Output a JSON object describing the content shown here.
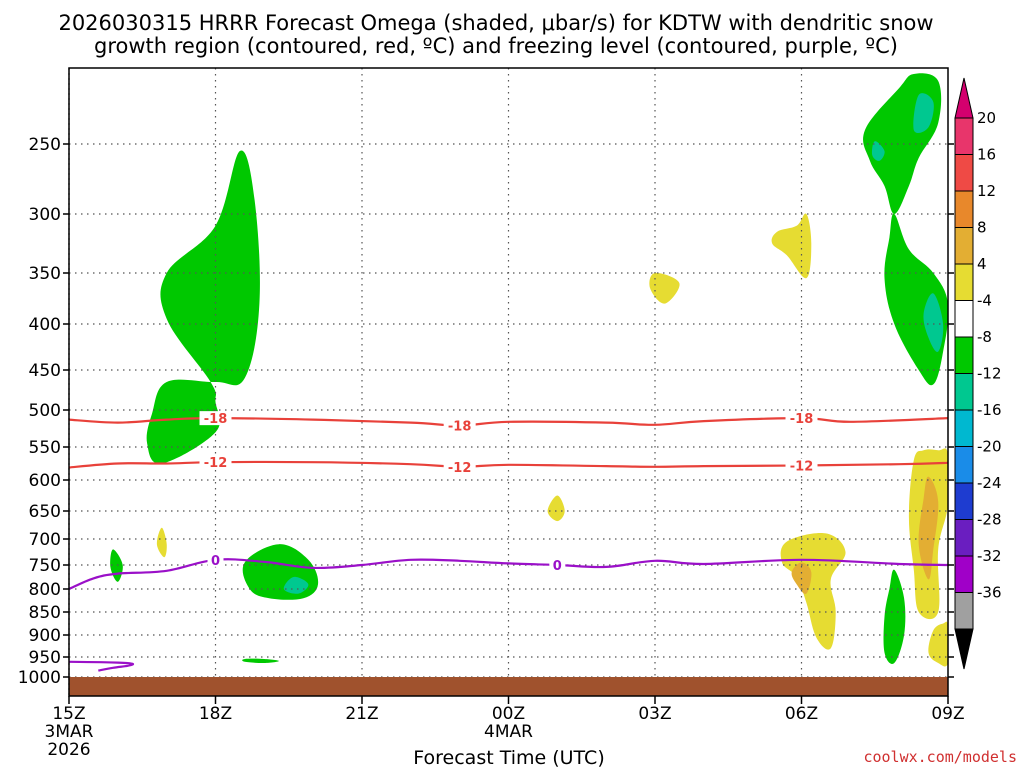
{
  "chart_data": {
    "type": "time-height cross section",
    "title_line1": "2026030315 HRRR Forecast Omega (shaded, μbar/s) for KDTW with dendritic snow",
    "title_line2": "growth region (contoured, red, ºC) and freezing level (contoured, purple, ºC)",
    "xlabel": "Forecast Time (UTC)",
    "credit": "coolwx.com/models",
    "x_range_hours": [
      0,
      18
    ],
    "x_ticks": [
      {
        "hour": 0,
        "label": "15Z",
        "sub1": "3MAR",
        "sub2": "2026"
      },
      {
        "hour": 3,
        "label": "18Z"
      },
      {
        "hour": 6,
        "label": "21Z"
      },
      {
        "hour": 9,
        "label": "00Z",
        "sub1": "4MAR"
      },
      {
        "hour": 12,
        "label": "03Z"
      },
      {
        "hour": 15,
        "label": "06Z"
      },
      {
        "hour": 18,
        "label": "09Z"
      }
    ],
    "y_ticks_hPa": [
      250,
      300,
      350,
      400,
      450,
      500,
      550,
      600,
      650,
      700,
      750,
      800,
      850,
      900,
      950,
      1000
    ],
    "colorbar": {
      "ticks": [
        "20",
        "16",
        "12",
        "8",
        "4",
        "-4",
        "-8",
        "-12",
        "-16",
        "-20",
        "-24",
        "-28",
        "-32",
        "-36"
      ],
      "colors": [
        "#e8356b",
        "#ef4a45",
        "#e8882b",
        "#e3ae33",
        "#e6dc32",
        "#ffffff",
        "#00c800",
        "#00c890",
        "#00b8d0",
        "#1a8ce8",
        "#1e3cd0",
        "#6a1ec0",
        "#a000c8",
        "#a0a0a0"
      ],
      "top_color": "#d4006e",
      "bottom_color": "#000000"
    },
    "contours": [
      {
        "name": "dgz-minus18",
        "value": -18,
        "color": "#e8413a",
        "label": "-18",
        "points": [
          [
            0,
            513
          ],
          [
            1,
            517
          ],
          [
            2,
            513
          ],
          [
            3,
            511
          ],
          [
            5,
            513
          ],
          [
            7,
            517
          ],
          [
            8,
            521
          ],
          [
            9,
            516
          ],
          [
            11,
            517
          ],
          [
            12,
            520
          ],
          [
            13,
            515
          ],
          [
            15,
            511
          ],
          [
            16,
            516
          ],
          [
            18,
            511
          ]
        ]
      },
      {
        "name": "dgz-minus12",
        "value": -12,
        "color": "#e8413a",
        "label": "-12",
        "points": [
          [
            0,
            581
          ],
          [
            1,
            575
          ],
          [
            2,
            575
          ],
          [
            3,
            573
          ],
          [
            5,
            573
          ],
          [
            7,
            576
          ],
          [
            8,
            580
          ],
          [
            9,
            577
          ],
          [
            11,
            579
          ],
          [
            12,
            580
          ],
          [
            13,
            579
          ],
          [
            15,
            578
          ],
          [
            17,
            576
          ],
          [
            18,
            574
          ]
        ]
      },
      {
        "name": "freezing-level",
        "value": 0,
        "color": "#9a10c8",
        "label": "0",
        "points": [
          [
            0,
            800
          ],
          [
            0.5,
            778
          ],
          [
            1,
            768
          ],
          [
            2,
            762
          ],
          [
            3,
            740
          ],
          [
            4,
            744
          ],
          [
            5,
            756
          ],
          [
            6,
            750
          ],
          [
            7,
            740
          ],
          [
            8,
            742
          ],
          [
            9,
            747
          ],
          [
            10,
            750
          ],
          [
            11,
            754
          ],
          [
            12,
            742
          ],
          [
            13,
            748
          ],
          [
            15,
            740
          ],
          [
            17,
            748
          ],
          [
            18,
            750
          ]
        ]
      },
      {
        "name": "freezing-level-surface",
        "value": 0,
        "color": "#9a10c8",
        "label": "",
        "points": [
          [
            0,
            962
          ],
          [
            1,
            964
          ],
          [
            1.3,
            967
          ],
          [
            1.2,
            972
          ],
          [
            0.9,
            977
          ],
          [
            0.6,
            984
          ]
        ]
      }
    ],
    "shaded_regions": [
      {
        "name": "omega-upward-minus4-a",
        "value": -4,
        "color": "#00c800",
        "points": [
          [
            3.0,
            465
          ],
          [
            2.0,
            465
          ],
          [
            1.7,
            505
          ],
          [
            1.6,
            545
          ],
          [
            1.9,
            575
          ],
          [
            3.0,
            530
          ],
          [
            3.0,
            490
          ],
          [
            2.9,
            465
          ],
          [
            2.0,
            395
          ],
          [
            2.0,
            350
          ],
          [
            3.0,
            310
          ],
          [
            3.5,
            255
          ],
          [
            3.8,
            290
          ],
          [
            3.9,
            380
          ],
          [
            3.6,
            460
          ]
        ]
      },
      {
        "name": "omega-upward-minus4-b",
        "value": -4,
        "color": "#00c800",
        "points": [
          [
            3.6,
            745
          ],
          [
            4.3,
            710
          ],
          [
            4.9,
            740
          ],
          [
            5.1,
            790
          ],
          [
            4.8,
            820
          ],
          [
            4.1,
            820
          ],
          [
            3.7,
            800
          ]
        ]
      },
      {
        "name": "omega-upward-minus8-b",
        "value": -8,
        "color": "#00c890",
        "points": [
          [
            4.6,
            775
          ],
          [
            4.9,
            790
          ],
          [
            4.7,
            810
          ],
          [
            4.4,
            800
          ]
        ]
      },
      {
        "name": "omega-upward-minus4-c",
        "value": -4,
        "color": "#00c800",
        "points": [
          [
            0.9,
            720
          ],
          [
            1.1,
            750
          ],
          [
            1.0,
            785
          ],
          [
            0.85,
            755
          ]
        ]
      },
      {
        "name": "omega-upward-minus4-d",
        "value": -4,
        "color": "#00c800",
        "points": [
          [
            3.6,
            955
          ],
          [
            4.0,
            955
          ],
          [
            4.3,
            960
          ],
          [
            4.0,
            965
          ],
          [
            3.6,
            962
          ]
        ]
      },
      {
        "name": "omega-upward-minus4-e",
        "value": -4,
        "color": "#00c800",
        "points": [
          [
            16.3,
            240
          ],
          [
            17.0,
            210
          ],
          [
            17.3,
            200
          ],
          [
            17.8,
            205
          ],
          [
            17.8,
            235
          ],
          [
            17.4,
            260
          ],
          [
            17.2,
            280
          ],
          [
            16.9,
            300
          ],
          [
            16.7,
            280
          ],
          [
            16.4,
            262
          ]
        ]
      },
      {
        "name": "omega-upward-minus8-e",
        "value": -8,
        "color": "#00c890",
        "points": [
          [
            17.4,
            215
          ],
          [
            17.7,
            220
          ],
          [
            17.6,
            238
          ],
          [
            17.3,
            240
          ]
        ]
      },
      {
        "name": "omega-upward-minus8-e2",
        "value": -8,
        "color": "#00c890",
        "points": [
          [
            16.5,
            248
          ],
          [
            16.7,
            255
          ],
          [
            16.6,
            262
          ],
          [
            16.45,
            258
          ]
        ]
      },
      {
        "name": "omega-upward-minus4-f",
        "value": -4,
        "color": "#00c800",
        "points": [
          [
            16.9,
            300
          ],
          [
            17.2,
            330
          ],
          [
            17.7,
            350
          ],
          [
            18.0,
            380
          ],
          [
            17.9,
            430
          ],
          [
            17.7,
            468
          ],
          [
            17.4,
            450
          ],
          [
            16.9,
            400
          ],
          [
            16.7,
            355
          ],
          [
            16.8,
            320
          ]
        ]
      },
      {
        "name": "omega-upward-minus8-f",
        "value": -8,
        "color": "#00c890",
        "points": [
          [
            17.7,
            370
          ],
          [
            17.9,
            400
          ],
          [
            17.8,
            430
          ],
          [
            17.6,
            415
          ],
          [
            17.5,
            390
          ]
        ]
      },
      {
        "name": "omega-upward-minus4-g",
        "value": -4,
        "color": "#00c800",
        "points": [
          [
            16.9,
            760
          ],
          [
            17.1,
            820
          ],
          [
            17.1,
            900
          ],
          [
            16.9,
            965
          ],
          [
            16.7,
            940
          ],
          [
            16.7,
            860
          ],
          [
            16.8,
            800
          ]
        ]
      },
      {
        "name": "omega-down-4-a",
        "value": 4,
        "color": "#e6dc32",
        "points": [
          [
            1.9,
            680
          ],
          [
            2.0,
            710
          ],
          [
            1.95,
            735
          ],
          [
            1.8,
            710
          ]
        ]
      },
      {
        "name": "omega-down-4-b",
        "value": 4,
        "color": "#e6dc32",
        "points": [
          [
            12.0,
            350
          ],
          [
            12.5,
            360
          ],
          [
            12.2,
            380
          ],
          [
            11.9,
            365
          ]
        ]
      },
      {
        "name": "omega-down-4-c",
        "value": 4,
        "color": "#e6dc32",
        "points": [
          [
            10.0,
            625
          ],
          [
            10.15,
            650
          ],
          [
            10.0,
            668
          ],
          [
            9.8,
            650
          ]
        ]
      },
      {
        "name": "omega-down-4-d",
        "value": 4,
        "color": "#e6dc32",
        "points": [
          [
            14.9,
            310
          ],
          [
            15.1,
            300
          ],
          [
            15.2,
            325
          ],
          [
            15.1,
            355
          ],
          [
            14.7,
            335
          ],
          [
            14.4,
            325
          ],
          [
            14.5,
            315
          ]
        ]
      },
      {
        "name": "omega-down-4-e",
        "value": 4,
        "color": "#e6dc32",
        "points": [
          [
            15.5,
            690
          ],
          [
            15.9,
            725
          ],
          [
            15.6,
            780
          ],
          [
            15.7,
            850
          ],
          [
            15.6,
            930
          ],
          [
            15.3,
            905
          ],
          [
            15.1,
            830
          ],
          [
            14.9,
            775
          ],
          [
            14.6,
            745
          ],
          [
            14.7,
            705
          ]
        ]
      },
      {
        "name": "omega-down-8-e",
        "value": 8,
        "color": "#e3ae33",
        "points": [
          [
            15.0,
            745
          ],
          [
            15.2,
            765
          ],
          [
            15.1,
            810
          ],
          [
            14.9,
            790
          ],
          [
            14.8,
            765
          ]
        ]
      },
      {
        "name": "omega-down-4-f",
        "value": 4,
        "color": "#e6dc32",
        "points": [
          [
            17.8,
            555
          ],
          [
            18.0,
            560
          ],
          [
            18.0,
            640
          ],
          [
            17.8,
            720
          ],
          [
            17.8,
            850
          ],
          [
            17.4,
            850
          ],
          [
            17.3,
            760
          ],
          [
            17.2,
            660
          ],
          [
            17.3,
            570
          ],
          [
            17.5,
            555
          ]
        ]
      },
      {
        "name": "omega-down-8-f",
        "value": 8,
        "color": "#e3ae33",
        "points": [
          [
            17.6,
            595
          ],
          [
            17.8,
            635
          ],
          [
            17.7,
            720
          ],
          [
            17.6,
            780
          ],
          [
            17.4,
            710
          ],
          [
            17.5,
            630
          ]
        ]
      },
      {
        "name": "omega-down-4-g",
        "value": 4,
        "color": "#e6dc32",
        "points": [
          [
            17.9,
            875
          ],
          [
            18.0,
            880
          ],
          [
            18.0,
            965
          ],
          [
            17.8,
            965
          ],
          [
            17.6,
            940
          ],
          [
            17.7,
            890
          ]
        ]
      }
    ],
    "ground": {
      "color": "#a0522d",
      "surface_hPa": 1000
    }
  }
}
